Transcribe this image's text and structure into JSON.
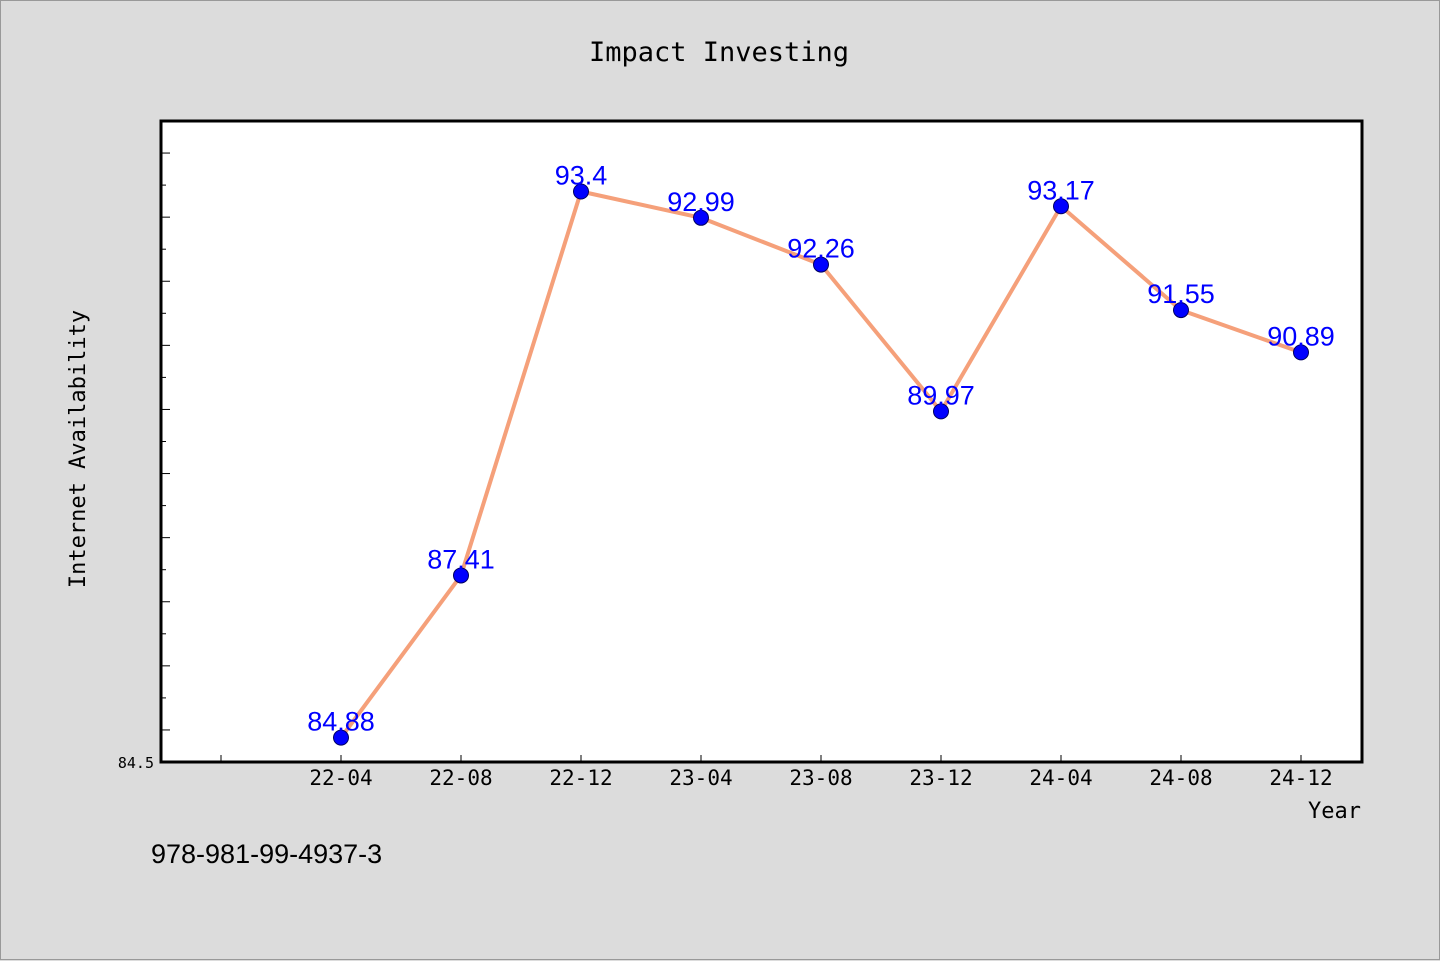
{
  "chart_data": {
    "type": "line",
    "title": "Impact Investing",
    "xlabel": "Year",
    "ylabel": "Internet Availability",
    "categories": [
      "22-04",
      "22-08",
      "22-12",
      "23-04",
      "23-08",
      "23-12",
      "24-04",
      "24-08",
      "24-12"
    ],
    "series": [
      {
        "values": [
          84.88,
          87.41,
          93.4,
          92.99,
          92.26,
          89.97,
          93.17,
          91.55,
          90.89
        ]
      }
    ],
    "data_labels": [
      "84.88",
      "87.41",
      "93.4",
      "92.99",
      "92.26",
      "89.97",
      "93.17",
      "91.55",
      "90.89"
    ],
    "ylim": [
      84.5,
      94.5
    ],
    "y_min_label": "84.5",
    "grid": false,
    "colors": {
      "line": "#f5a07a",
      "marker": "#0000ff",
      "label": "#0000ff"
    }
  },
  "footer": {
    "text": "978-981-99-4937-3"
  }
}
